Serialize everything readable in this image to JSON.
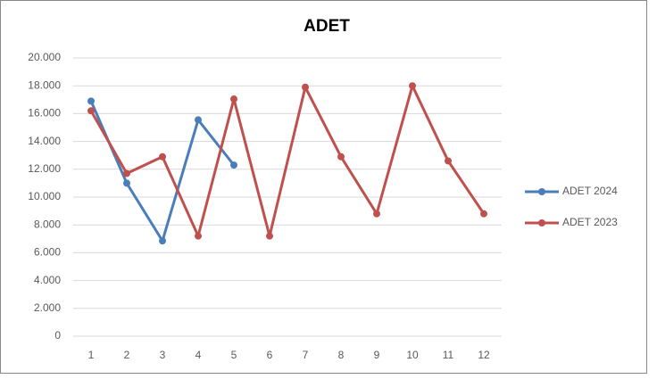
{
  "chart_data": {
    "type": "line",
    "title": "ADET",
    "categories": [
      "1",
      "2",
      "3",
      "4",
      "5",
      "6",
      "7",
      "8",
      "9",
      "10",
      "11",
      "12"
    ],
    "series": [
      {
        "name": "ADET 2024",
        "color": "#4a7ebb",
        "values": [
          16900,
          11000,
          6850,
          15550,
          12300,
          null,
          null,
          null,
          null,
          null,
          null,
          null
        ]
      },
      {
        "name": "ADET 2023",
        "color": "#c0504d",
        "values": [
          16200,
          11700,
          12900,
          7200,
          17050,
          7200,
          17900,
          12900,
          8800,
          18000,
          12600,
          8800
        ]
      }
    ],
    "ylim": [
      0,
      20000
    ],
    "yticks": [
      0,
      {
        "value": 2000,
        "label": "2.000"
      },
      {
        "value": 4000,
        "label": "4.000"
      },
      {
        "value": 6000,
        "label": "6.000"
      },
      {
        "value": 8000,
        "label": "8.000"
      },
      {
        "value": 10000,
        "label": "10.000"
      },
      {
        "value": 12000,
        "label": "12.000"
      },
      {
        "value": 14000,
        "label": "14.000"
      },
      {
        "value": 16000,
        "label": "16.000"
      },
      {
        "value": 18000,
        "label": "18.000"
      },
      {
        "value": 20000,
        "label": "20.000"
      }
    ],
    "grid": true,
    "legend": "right"
  }
}
